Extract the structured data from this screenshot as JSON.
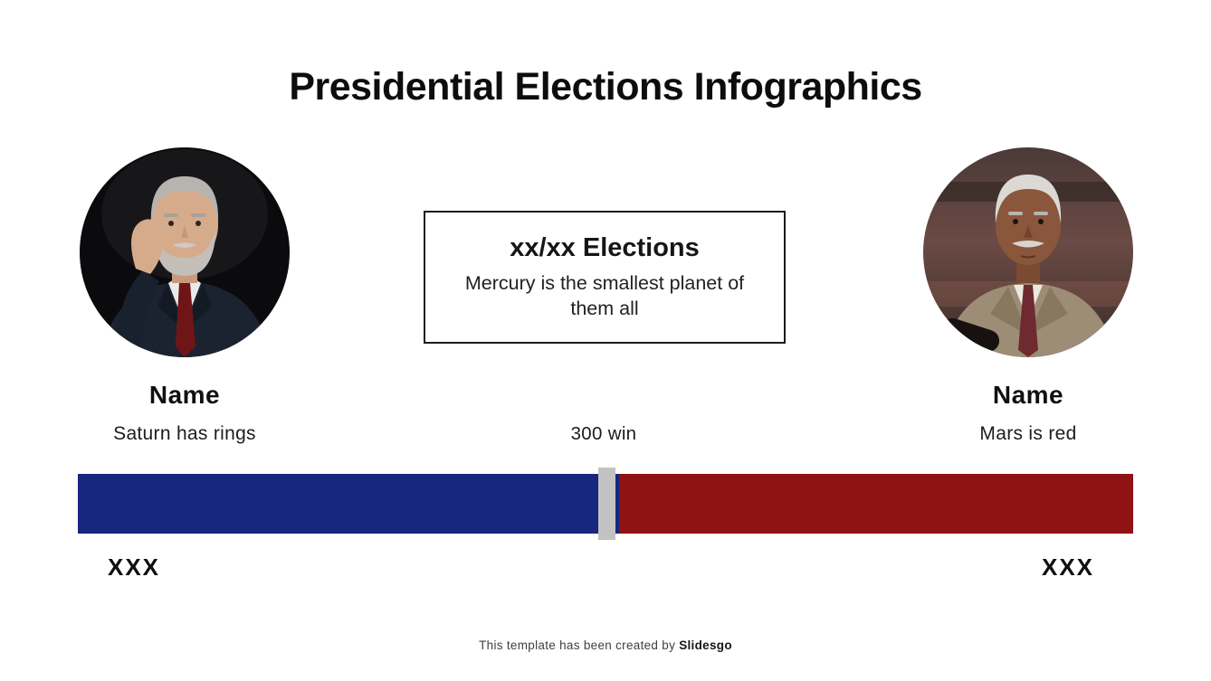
{
  "slide": {
    "title": "Presidential Elections Infographics",
    "info_box": {
      "heading": "xx/xx Elections",
      "body": "Mercury is the smallest planet of them all"
    },
    "candidates": {
      "left": {
        "name": "Name",
        "subtitle": "Saturn has rings",
        "votes_label": "XXX",
        "portrait_alt": "older man with gray beard in dark suit and red tie on black background",
        "color": "#17267E"
      },
      "right": {
        "name": "Name",
        "subtitle": "Mars is red",
        "votes_label": "XXX",
        "portrait_alt": "older man with white hair in tan suit speaking at a microphone",
        "color": "#8E1312"
      }
    }
  },
  "chart_data": {
    "type": "bar",
    "orientation": "horizontal",
    "title": "Election results bar (blue vs red) with win threshold marker",
    "series": [
      {
        "name": "Candidate left",
        "label": "XXX",
        "fraction": 0.513,
        "color": "#17267E"
      },
      {
        "name": "Candidate right",
        "label": "XXX",
        "fraction": 0.487,
        "color": "#8E1312"
      }
    ],
    "threshold": {
      "label": "300 win",
      "fraction": 0.501,
      "marker_color": "#C2C2C2"
    },
    "axis": "none",
    "legend": "none"
  },
  "footer": {
    "text": "This template has been created by ",
    "brand": "Slidesgo"
  }
}
